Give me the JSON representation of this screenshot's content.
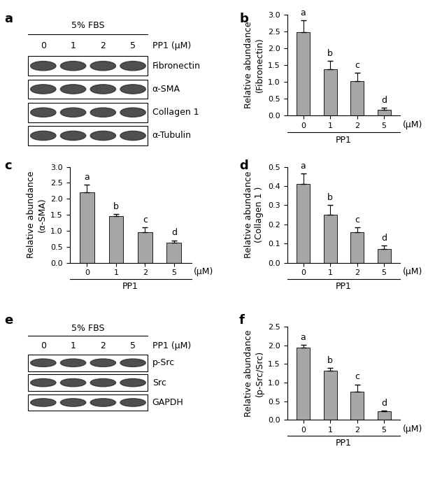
{
  "chart_data": [
    {
      "type": "blot",
      "panel": "a",
      "header": "5% FBS",
      "treatment": "PP1 (μM)",
      "lanes": [
        "0",
        "1",
        "2",
        "5"
      ],
      "rows": [
        "Fibronectin",
        "α-SMA",
        "Collagen 1",
        "α-Tubulin"
      ]
    },
    {
      "type": "bar",
      "panel": "b",
      "y_label": "Relative abundance\n(Fibronectin)",
      "x_label": "PP1",
      "x_unit": "(μM)",
      "categories": [
        "0",
        "1",
        "2",
        "5"
      ],
      "values": [
        2.48,
        1.38,
        1.02,
        0.17
      ],
      "errors": [
        0.35,
        0.25,
        0.25,
        0.05
      ],
      "annotations": [
        "a",
        "b",
        "c",
        "d"
      ],
      "color": "#a6a6a6",
      "ylim": [
        0,
        3.0
      ],
      "yticks": [
        {
          "value": 0,
          "label": "0.0"
        },
        {
          "value": 0.5,
          "label": "0.5"
        },
        {
          "value": 1,
          "label": "1.0"
        },
        {
          "value": 1.5,
          "label": "1.5"
        },
        {
          "value": 2,
          "label": "2.0"
        },
        {
          "value": 2.5,
          "label": "2.5"
        },
        {
          "value": 3,
          "label": "3.0"
        }
      ]
    },
    {
      "type": "bar",
      "panel": "c",
      "y_label": "Relative abundance\n(α-SMA)",
      "x_label": "PP1",
      "x_unit": "(μM)",
      "categories": [
        "0",
        "1",
        "2",
        "5"
      ],
      "values": [
        2.2,
        1.45,
        0.95,
        0.63
      ],
      "errors": [
        0.25,
        0.07,
        0.15,
        0.07
      ],
      "annotations": [
        "a",
        "b",
        "c",
        "d"
      ],
      "color": "#a6a6a6",
      "ylim": [
        0,
        3.0
      ],
      "yticks": [
        {
          "value": 0,
          "label": "0.0"
        },
        {
          "value": 0.5,
          "label": "0.5"
        },
        {
          "value": 1,
          "label": "1.0"
        },
        {
          "value": 1.5,
          "label": "1.5"
        },
        {
          "value": 2,
          "label": "2.0"
        },
        {
          "value": 2.5,
          "label": "2.5"
        },
        {
          "value": 3,
          "label": "3.0"
        }
      ]
    },
    {
      "type": "bar",
      "panel": "d",
      "y_label": "Relative abundance\n(Collagen 1 )",
      "x_label": "PP1",
      "x_unit": "(μM)",
      "categories": [
        "0",
        "1",
        "2",
        "5"
      ],
      "values": [
        0.41,
        0.25,
        0.16,
        0.07
      ],
      "errors": [
        0.055,
        0.05,
        0.025,
        0.02
      ],
      "annotations": [
        "a",
        "b",
        "c",
        "d"
      ],
      "color": "#a6a6a6",
      "ylim": [
        0,
        0.5
      ],
      "yticks": [
        {
          "value": 0,
          "label": "0.0"
        },
        0.1,
        0.2,
        0.3,
        0.4,
        0.5
      ]
    },
    {
      "type": "blot",
      "panel": "e",
      "header": "5% FBS",
      "treatment": "PP1 (μM)",
      "lanes": [
        "0",
        "1",
        "2",
        "5"
      ],
      "rows": [
        "p-Src",
        "Src",
        "GAPDH"
      ]
    },
    {
      "type": "bar",
      "panel": "f",
      "y_label": "Relative abundance\n(p-Src/Src)",
      "x_label": "PP1",
      "x_unit": "(μM)",
      "categories": [
        "0",
        "1",
        "2",
        "5"
      ],
      "values": [
        1.93,
        1.32,
        0.75,
        0.22
      ],
      "errors": [
        0.08,
        0.07,
        0.2,
        0.03
      ],
      "annotations": [
        "a",
        "b",
        "c",
        "d"
      ],
      "color": "#a6a6a6",
      "ylim": [
        0,
        2.5
      ],
      "yticks": [
        {
          "value": 0,
          "label": "0.0"
        },
        {
          "value": 0.5,
          "label": "0.5"
        },
        {
          "value": 1,
          "label": "1.0"
        },
        {
          "value": 1.5,
          "label": "1.5"
        },
        {
          "value": 2,
          "label": "2.0"
        },
        {
          "value": 2.5,
          "label": "2.5"
        }
      ]
    }
  ]
}
